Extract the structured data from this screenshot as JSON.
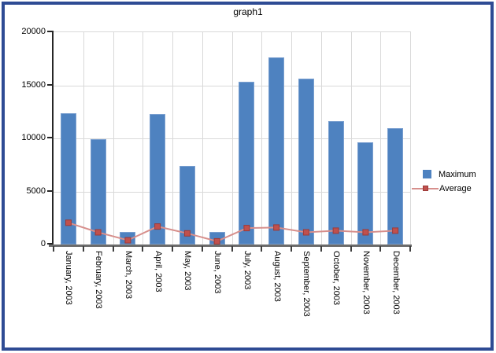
{
  "legend": {
    "items": [
      {
        "label": "Maximum"
      },
      {
        "label": "Average"
      }
    ]
  },
  "colors": {
    "frame": "#2e4b94",
    "bar": "#4e82c0",
    "barBorder": "#7ba0d0",
    "line": "#d78f8c",
    "marker": "#c0504d",
    "grid": "#d9d9d9"
  },
  "chart_data": {
    "type": "combo-bar-line",
    "title": "graph1",
    "categories": [
      "January, 2003",
      "February, 2003",
      "March, 2003",
      "April, 2003",
      "May, 2003",
      "June, 2003",
      "July, 2003",
      "August, 2003",
      "September, 2003",
      "October, 2003",
      "November, 2003",
      "December, 2003"
    ],
    "series": [
      {
        "name": "Maximum",
        "type": "bar",
        "color": "#4e82c0",
        "values": [
          12400,
          9900,
          1150,
          12300,
          7400,
          1150,
          15300,
          17600,
          15600,
          11600,
          9600,
          11000
        ]
      },
      {
        "name": "Average",
        "type": "line",
        "color": "#d78f8c",
        "marker_color": "#c0504d",
        "values": [
          2050,
          1150,
          400,
          1700,
          1050,
          300,
          1550,
          1600,
          1150,
          1300,
          1150,
          1300
        ]
      }
    ],
    "ylim": [
      0,
      20000
    ],
    "yticks": [
      0,
      5000,
      10000,
      15000,
      20000
    ],
    "grid": true,
    "legend_position": "right",
    "x_label_rotation_deg": 90
  }
}
